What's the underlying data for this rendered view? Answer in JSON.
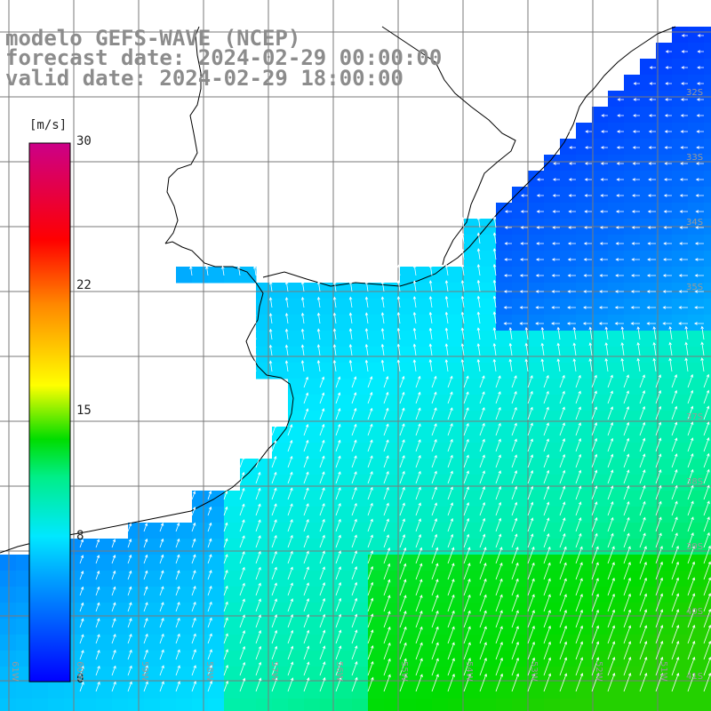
{
  "title": {
    "line1": "modelo GEFS-WAVE (NCEP)",
    "line2": "forecast date: 2024-02-29 00:00:00",
    "line3": "valid date: 2024-02-29 18:00:00"
  },
  "colorbar": {
    "unit": "[m/s]",
    "ticks": [
      "30",
      "22",
      "15",
      "8",
      "0"
    ],
    "tick_values": [
      30,
      22,
      15,
      8,
      0
    ],
    "min": 0,
    "max": 30
  },
  "lat_labels": [
    "32S",
    "33S",
    "34S",
    "35S",
    "37S",
    "38S",
    "39S",
    "40S",
    "41S"
  ],
  "lat_values": [
    -32,
    -33,
    -34,
    -35,
    -37,
    -38,
    -39,
    -40,
    -41
  ],
  "lon_labels": [
    "61W",
    "60W",
    "59W",
    "58W",
    "57W",
    "56W",
    "55W",
    "54W",
    "53W",
    "52W",
    "51W"
  ],
  "lon_values": [
    -61,
    -60,
    -59,
    -58,
    -57,
    -56,
    -55,
    -54,
    -53,
    -52,
    -51
  ],
  "map_extent": {
    "lon": [
      -61.2,
      -50.5
    ],
    "lat": [
      -41.4,
      -30.5
    ]
  },
  "colors": {
    "land": "#ffffff",
    "coast": "#000000",
    "grid": "#7a7a7a",
    "arrow": "#ffffff",
    "title": "#8c8c8c"
  }
}
